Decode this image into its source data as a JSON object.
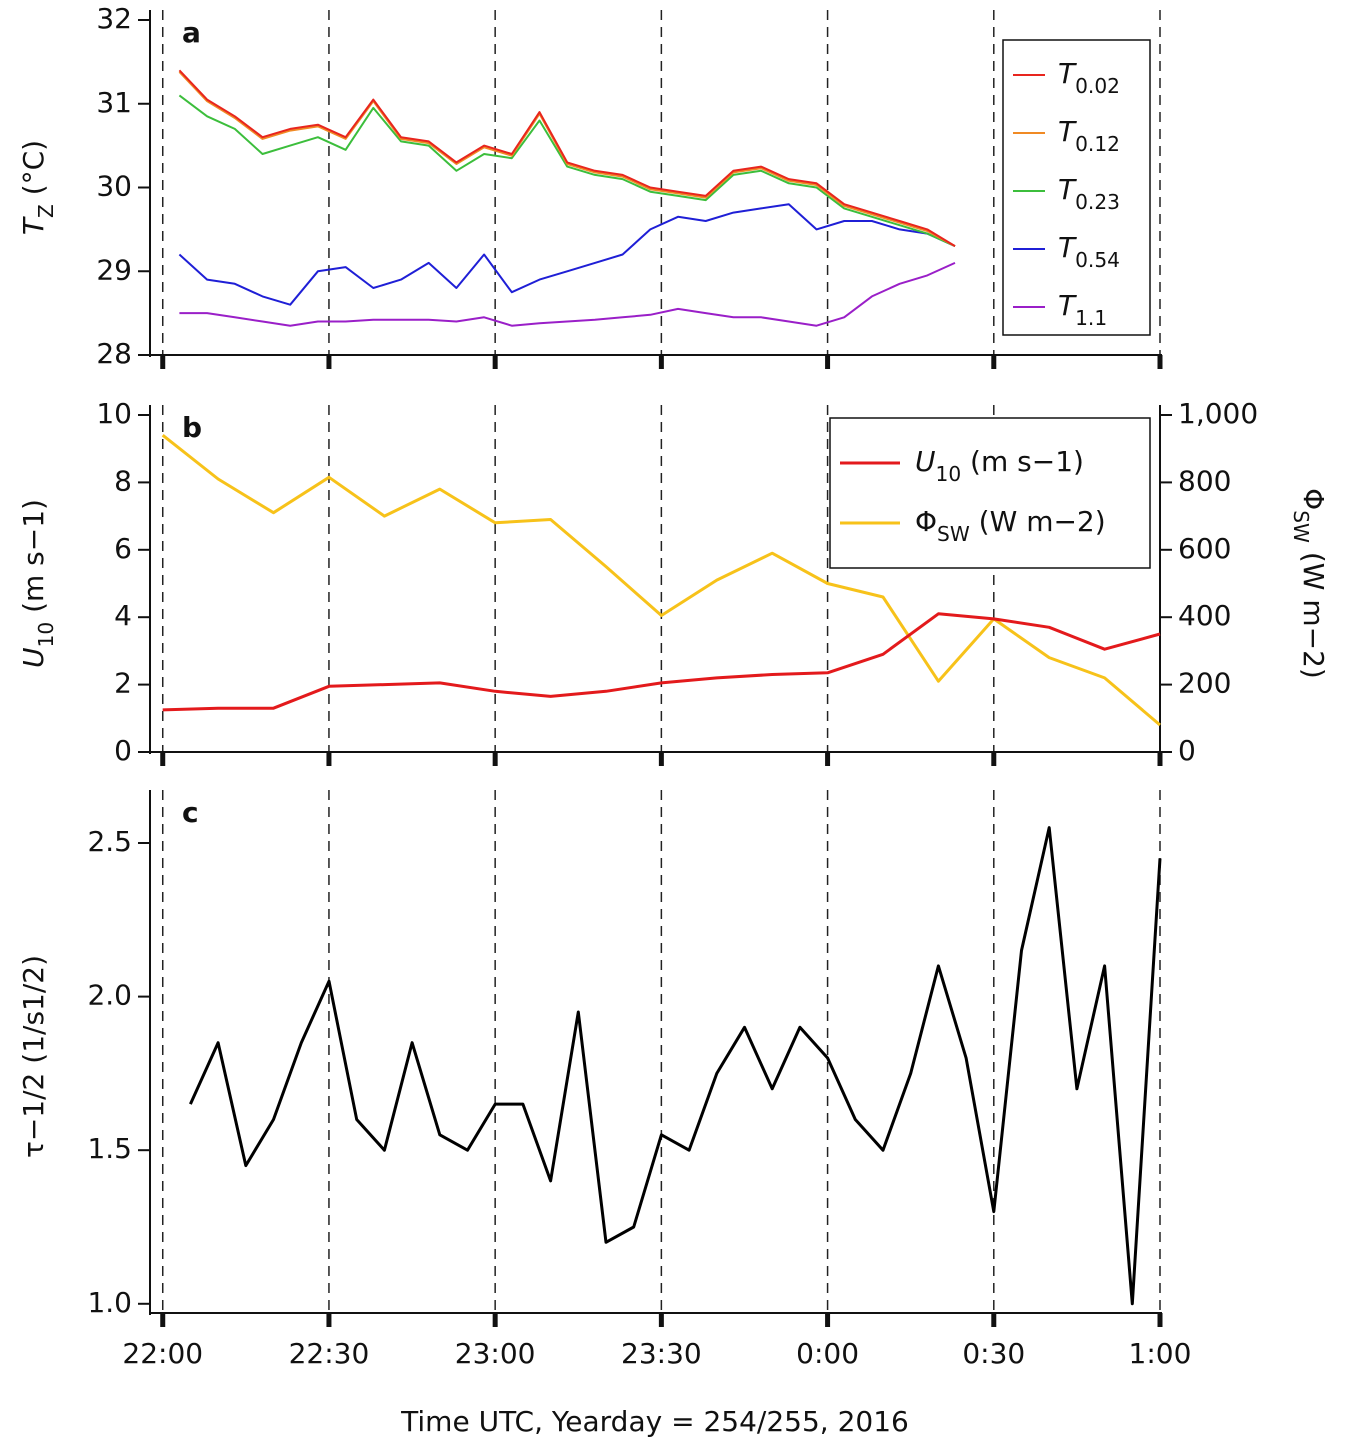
{
  "chart_data": [
    {
      "type": "line",
      "panel_label": "a",
      "ylabel": "TZ (°C)",
      "x": [
        3,
        8,
        13,
        18,
        23,
        28,
        33,
        38,
        43,
        48,
        53,
        58,
        63,
        68,
        73,
        78,
        83,
        88,
        93,
        98,
        103,
        108,
        113,
        118,
        123,
        128,
        133,
        138,
        143
      ],
      "series": [
        {
          "name": "T0.02",
          "color": "#e8251e",
          "values": [
            31.4,
            31.05,
            30.85,
            30.6,
            30.7,
            30.75,
            30.6,
            31.05,
            30.6,
            30.55,
            30.3,
            30.5,
            30.4,
            30.9,
            30.3,
            30.2,
            30.15,
            30.0,
            29.95,
            29.9,
            30.2,
            30.25,
            30.1,
            30.05,
            29.8,
            29.7,
            29.6,
            29.5,
            29.3
          ]
        },
        {
          "name": "T0.12",
          "color": "#f08a24",
          "values": [
            31.38,
            31.03,
            30.83,
            30.58,
            30.68,
            30.73,
            30.58,
            31.03,
            30.58,
            30.53,
            30.28,
            30.48,
            30.38,
            30.88,
            30.28,
            30.18,
            30.13,
            29.98,
            29.93,
            29.88,
            30.18,
            30.23,
            30.08,
            30.03,
            29.78,
            29.68,
            29.58,
            29.48,
            29.3
          ]
        },
        {
          "name": "T0.23",
          "color": "#3cbe3c",
          "values": [
            31.1,
            30.85,
            30.7,
            30.4,
            30.5,
            30.6,
            30.45,
            30.95,
            30.55,
            30.5,
            30.2,
            30.4,
            30.35,
            30.8,
            30.25,
            30.15,
            30.1,
            29.95,
            29.9,
            29.85,
            30.15,
            30.2,
            30.05,
            30.0,
            29.75,
            29.65,
            29.55,
            29.45,
            29.3
          ]
        },
        {
          "name": "T0.54",
          "color": "#1f1fd6",
          "values": [
            29.2,
            28.9,
            28.85,
            28.7,
            28.6,
            29.0,
            29.05,
            28.8,
            28.9,
            29.1,
            28.8,
            29.2,
            28.75,
            28.9,
            29.0,
            29.1,
            29.2,
            29.5,
            29.65,
            29.6,
            29.7,
            29.75,
            29.8,
            29.5,
            29.6,
            29.6,
            29.5,
            29.45,
            29.3
          ]
        },
        {
          "name": "T1.1",
          "color": "#9a1fc8",
          "values": [
            28.5,
            28.5,
            28.45,
            28.4,
            28.35,
            28.4,
            28.4,
            28.42,
            28.42,
            28.42,
            28.4,
            28.45,
            28.35,
            28.38,
            28.4,
            28.42,
            28.45,
            28.48,
            28.55,
            28.5,
            28.45,
            28.45,
            28.4,
            28.35,
            28.45,
            28.7,
            28.85,
            28.95,
            29.1
          ]
        }
      ],
      "xlim": [
        -2.3,
        180
      ],
      "xticks": [
        0,
        30,
        60,
        90,
        120,
        150,
        180
      ],
      "ylim": [
        28,
        32
      ],
      "yticks": [
        28,
        29,
        30,
        31,
        32
      ],
      "grid": true,
      "legend": "upper-right"
    },
    {
      "type": "line",
      "panel_label": "b",
      "ylabel": "U10 (m s−1)",
      "y2label": "ΦSW (W m−2)",
      "x": [
        0,
        10,
        20,
        30,
        40,
        50,
        60,
        70,
        80,
        90,
        100,
        110,
        120,
        130,
        140,
        150,
        160,
        170,
        180
      ],
      "series": [
        {
          "name": "U10 (m s−1)",
          "color": "#e31a1c",
          "values": [
            1.25,
            1.3,
            1.3,
            1.95,
            2.0,
            2.05,
            1.8,
            1.65,
            1.8,
            2.05,
            2.2,
            2.3,
            2.35,
            2.9,
            4.1,
            3.95,
            3.7,
            3.05,
            3.5
          ]
        },
        {
          "name": "ΦSW (W m−2)",
          "color": "#f7c21a",
          "axis": "y2",
          "values": [
            940,
            810,
            710,
            815,
            700,
            780,
            680,
            690,
            550,
            405,
            510,
            590,
            500,
            460,
            210,
            395,
            280,
            220,
            80
          ]
        }
      ],
      "xlim": [
        -2.3,
        180
      ],
      "xticks": [
        0,
        30,
        60,
        90,
        120,
        150,
        180
      ],
      "ylim": [
        0,
        10
      ],
      "yticks": [
        0,
        2,
        4,
        6,
        8,
        10
      ],
      "y2lim": [
        0,
        1000
      ],
      "y2ticks": [
        0,
        200,
        400,
        600,
        800,
        {
          "value": 1000,
          "label": "1,000"
        }
      ],
      "grid": true,
      "legend": "upper-right"
    },
    {
      "type": "line",
      "panel_label": "c",
      "ylabel": "τ−1/2  (1/s1/2)",
      "xlabel": "Time UTC, Yearday = 254/255, 2016",
      "x": [
        5,
        10,
        15,
        20,
        25,
        30,
        35,
        40,
        45,
        50,
        55,
        60,
        65,
        70,
        75,
        80,
        85,
        90,
        95,
        100,
        105,
        110,
        115,
        120,
        125,
        130,
        135,
        140,
        145,
        150,
        155,
        160,
        165,
        170,
        175,
        180
      ],
      "series": [
        {
          "color": "#000000",
          "values": [
            1.65,
            1.85,
            1.45,
            1.6,
            1.85,
            2.05,
            1.6,
            1.5,
            1.85,
            1.55,
            1.5,
            1.65,
            1.65,
            1.4,
            1.95,
            1.2,
            1.25,
            1.55,
            1.5,
            1.75,
            1.9,
            1.7,
            1.9,
            1.8,
            1.6,
            1.5,
            1.75,
            2.1,
            1.8,
            1.3,
            2.15,
            2.55,
            1.7,
            2.1,
            1.0,
            2.45
          ]
        }
      ],
      "xlim": [
        -2.3,
        180
      ],
      "xticks": [
        {
          "value": 0,
          "label": "22:00"
        },
        {
          "value": 30,
          "label": "22:30"
        },
        {
          "value": 60,
          "label": "23:00"
        },
        {
          "value": 90,
          "label": "23:30"
        },
        {
          "value": 120,
          "label": "0:00"
        },
        {
          "value": 150,
          "label": "0:30"
        },
        {
          "value": 180,
          "label": "1:00"
        }
      ],
      "ylim": [
        0.97,
        2.64
      ],
      "yticks": [
        {
          "value": 1,
          "label": "1.0"
        },
        1.5,
        {
          "value": 2,
          "label": "2.0"
        },
        2.5
      ],
      "grid": true
    }
  ]
}
